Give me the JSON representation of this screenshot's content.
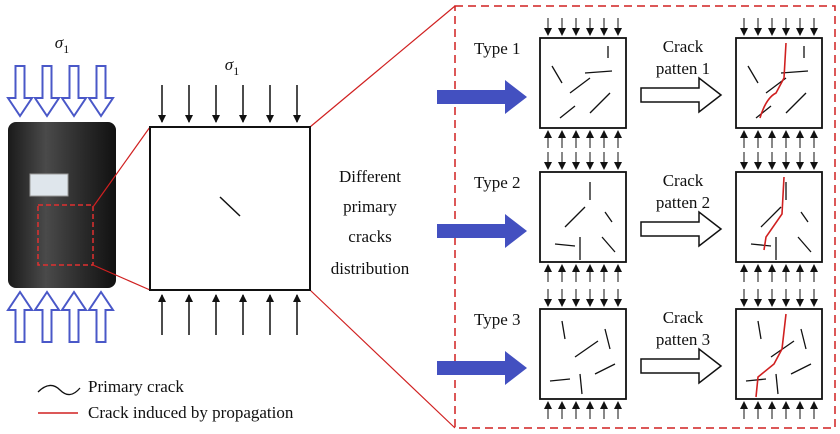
{
  "specimen": {
    "stress": {
      "symbol": "σ",
      "subscript": "1"
    }
  },
  "element": {
    "stress": {
      "symbol": "σ",
      "subscript": "1"
    }
  },
  "middle_label": [
    "Different",
    "primary",
    "cracks",
    "distribution"
  ],
  "rows": [
    {
      "type": "Type 1",
      "arrow_label": [
        "Crack",
        "patten 1"
      ]
    },
    {
      "type": "Type 2",
      "arrow_label": [
        "Crack",
        "patten 2"
      ]
    },
    {
      "type": "Type 3",
      "arrow_label": [
        "Crack",
        "patten 3"
      ]
    }
  ],
  "legend": [
    {
      "label": "Primary crack"
    },
    {
      "label": "Crack induced by propagation"
    }
  ]
}
